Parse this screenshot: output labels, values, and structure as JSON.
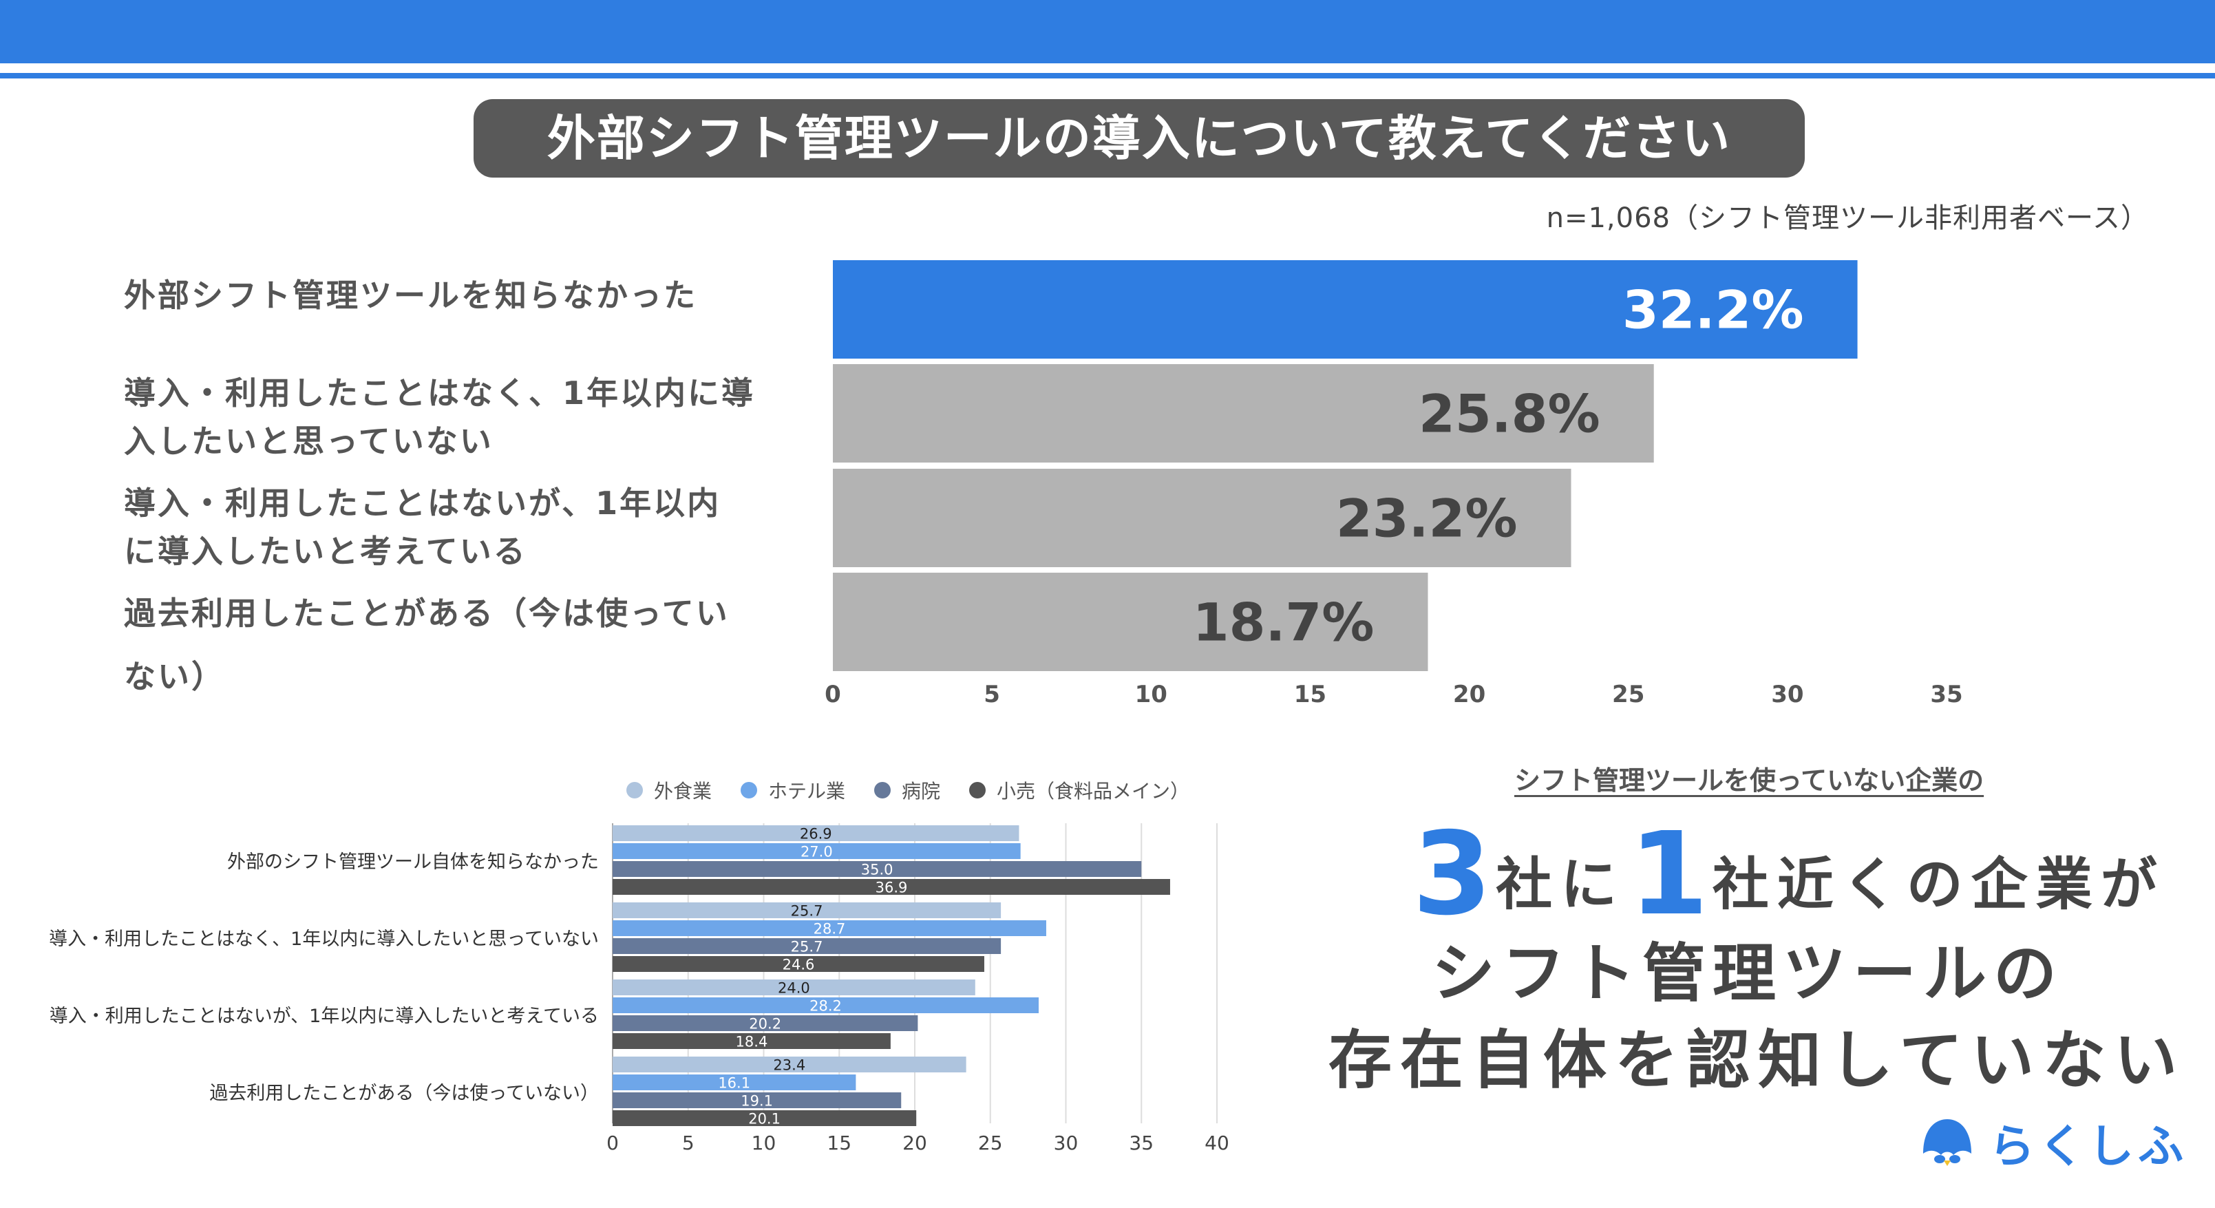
{
  "header": {
    "title": "外部シフト管理ツールの導入について教えてください",
    "sample_note": "n=1,068（シフト管理ツール非利用者ベース）"
  },
  "colors": {
    "accent": "#2f7de1",
    "gray_bar": "#b3b3b3",
    "pill": "#595959"
  },
  "chart_data": [
    {
      "type": "bar",
      "orientation": "horizontal",
      "categories": [
        "外部シフト管理ツールを知らなかった",
        "導入・利用したことはなく、1年以内に導入したいと思っていない",
        "導入・利用したことはないが、1年以内に導入したいと考えている",
        "過去利用したことがある（今は使っていない）"
      ],
      "category_lines": [
        [
          "外部シフト管理ツールを知らなかった"
        ],
        [
          "導入・利用したことはなく、1年以内に導",
          "入したいと思っていない"
        ],
        [
          "導入・利用したことはないが、1年以内",
          "に導入したいと考えている"
        ],
        [
          "過去利用したことがある（今は使ってい",
          "ない）"
        ]
      ],
      "values": [
        32.2,
        25.8,
        23.2,
        18.7
      ],
      "value_labels": [
        "32.2%",
        "25.8%",
        "23.2%",
        "18.7%"
      ],
      "xlim": [
        0,
        35
      ],
      "xticks": [
        "0",
        "5",
        "10",
        "15",
        "20",
        "25",
        "30",
        "35"
      ]
    },
    {
      "type": "bar",
      "orientation": "horizontal",
      "categories": [
        "外部のシフト管理ツール自体を知らなかった",
        "導入・利用したことはなく、1年以内に導入したいと思っていない",
        "導入・利用したことはないが、1年以内に導入したいと考えている",
        "過去利用したことがある（今は使っていない）"
      ],
      "series": [
        {
          "name": "外食業",
          "color": "#aec4de",
          "values": [
            26.9,
            25.7,
            24.0,
            23.4
          ],
          "labels": [
            "26.9",
            "25.7",
            "24.0",
            "23.4"
          ]
        },
        {
          "name": "ホテル業",
          "color": "#6ea6e9",
          "values": [
            27.0,
            28.7,
            28.2,
            16.1
          ],
          "labels": [
            "27.0",
            "28.7",
            "28.2",
            "16.1"
          ]
        },
        {
          "name": "病院",
          "color": "#66799a",
          "values": [
            35.0,
            25.7,
            20.2,
            19.1
          ],
          "labels": [
            "35.0",
            "25.7",
            "20.2",
            "19.1"
          ]
        },
        {
          "name": "小売（食料品メイン）",
          "color": "#545454",
          "values": [
            36.9,
            24.6,
            18.4,
            20.1
          ],
          "labels": [
            "36.9",
            "24.6",
            "18.4",
            "20.1"
          ]
        }
      ],
      "xlim": [
        0,
        40
      ],
      "xticks": [
        "0",
        "5",
        "10",
        "15",
        "20",
        "25",
        "30",
        "35",
        "40"
      ]
    }
  ],
  "headline": {
    "sub": "シフト管理ツールを使っていない企業の",
    "num1": "3",
    "text1": "社に",
    "num2": "1",
    "text2": "社近くの企業が",
    "line2": "シフト管理ツールの",
    "line3": "存在自体を認知していない"
  },
  "logo": {
    "text": "らくしふ"
  }
}
